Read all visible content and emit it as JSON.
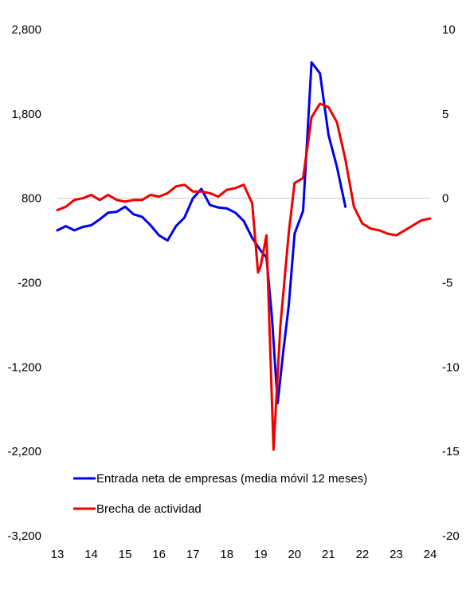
{
  "chart_data": {
    "type": "line",
    "title": "",
    "x_tick_labels": [
      "13",
      "14",
      "15",
      "16",
      "17",
      "18",
      "19",
      "20",
      "21",
      "22",
      "23",
      "24"
    ],
    "xlim": [
      13,
      24
    ],
    "y_left": {
      "ylim": [
        -3200,
        2800
      ],
      "tick_labels": [
        "2,800",
        "1,800",
        "800",
        "-200",
        "-1,200",
        "-2,200",
        "-3,200"
      ],
      "ticks": [
        2800,
        1800,
        800,
        -200,
        -1200,
        -2200,
        -3200
      ]
    },
    "y_right": {
      "ylim": [
        -20,
        10
      ],
      "tick_labels": [
        "10",
        "5",
        "0",
        "-5",
        "-10",
        "-15",
        "-20"
      ],
      "ticks": [
        10,
        5,
        0,
        -5,
        -10,
        -15,
        -20
      ]
    },
    "baseline": 0,
    "legend_position": "bottom-left",
    "series": [
      {
        "name": "Entrada neta de empresas (media móvil 12 meses)",
        "color": "#0000ee",
        "axis": "left",
        "points": [
          [
            13.0,
            420
          ],
          [
            13.25,
            470
          ],
          [
            13.5,
            420
          ],
          [
            13.75,
            460
          ],
          [
            14.0,
            480
          ],
          [
            14.25,
            550
          ],
          [
            14.5,
            630
          ],
          [
            14.75,
            640
          ],
          [
            15.0,
            700
          ],
          [
            15.25,
            610
          ],
          [
            15.5,
            580
          ],
          [
            15.75,
            480
          ],
          [
            16.0,
            360
          ],
          [
            16.25,
            300
          ],
          [
            16.5,
            470
          ],
          [
            16.75,
            570
          ],
          [
            17.0,
            800
          ],
          [
            17.25,
            910
          ],
          [
            17.5,
            720
          ],
          [
            17.75,
            690
          ],
          [
            18.0,
            680
          ],
          [
            18.25,
            630
          ],
          [
            18.5,
            530
          ],
          [
            18.75,
            330
          ],
          [
            19.0,
            180
          ],
          [
            19.17,
            100
          ],
          [
            19.33,
            -600
          ],
          [
            19.5,
            -1630
          ],
          [
            19.67,
            -1000
          ],
          [
            19.83,
            -460
          ],
          [
            20.0,
            380
          ],
          [
            20.25,
            650
          ],
          [
            20.5,
            2410
          ],
          [
            20.75,
            2280
          ],
          [
            21.0,
            1550
          ],
          [
            21.25,
            1170
          ],
          [
            21.5,
            700
          ]
        ]
      },
      {
        "name": "Brecha de actividad",
        "color": "#ee0000",
        "axis": "right",
        "points": [
          [
            13.0,
            -0.7
          ],
          [
            13.25,
            -0.5
          ],
          [
            13.5,
            -0.1
          ],
          [
            13.75,
            0.0
          ],
          [
            14.0,
            0.2
          ],
          [
            14.25,
            -0.1
          ],
          [
            14.5,
            0.2
          ],
          [
            14.75,
            -0.1
          ],
          [
            15.0,
            -0.2
          ],
          [
            15.25,
            -0.1
          ],
          [
            15.5,
            -0.1
          ],
          [
            15.75,
            0.2
          ],
          [
            16.0,
            0.1
          ],
          [
            16.25,
            0.3
          ],
          [
            16.5,
            0.7
          ],
          [
            16.75,
            0.8
          ],
          [
            17.0,
            0.4
          ],
          [
            17.25,
            0.4
          ],
          [
            17.5,
            0.3
          ],
          [
            17.75,
            0.1
          ],
          [
            18.0,
            0.5
          ],
          [
            18.25,
            0.6
          ],
          [
            18.5,
            0.8
          ],
          [
            18.75,
            -0.3
          ],
          [
            18.92,
            -4.4
          ],
          [
            19.0,
            -4.0
          ],
          [
            19.17,
            -2.2
          ],
          [
            19.38,
            -14.9
          ],
          [
            19.58,
            -7.6
          ],
          [
            19.83,
            -2.0
          ],
          [
            20.0,
            0.9
          ],
          [
            20.25,
            1.2
          ],
          [
            20.5,
            4.8
          ],
          [
            20.75,
            5.6
          ],
          [
            21.0,
            5.4
          ],
          [
            21.25,
            4.5
          ],
          [
            21.5,
            2.3
          ],
          [
            21.75,
            -0.5
          ],
          [
            22.0,
            -1.5
          ],
          [
            22.25,
            -1.8
          ],
          [
            22.5,
            -1.9
          ],
          [
            22.75,
            -2.1
          ],
          [
            23.0,
            -2.2
          ],
          [
            23.25,
            -1.9
          ],
          [
            23.5,
            -1.6
          ],
          [
            23.75,
            -1.3
          ],
          [
            24.0,
            -1.2
          ]
        ]
      }
    ]
  }
}
